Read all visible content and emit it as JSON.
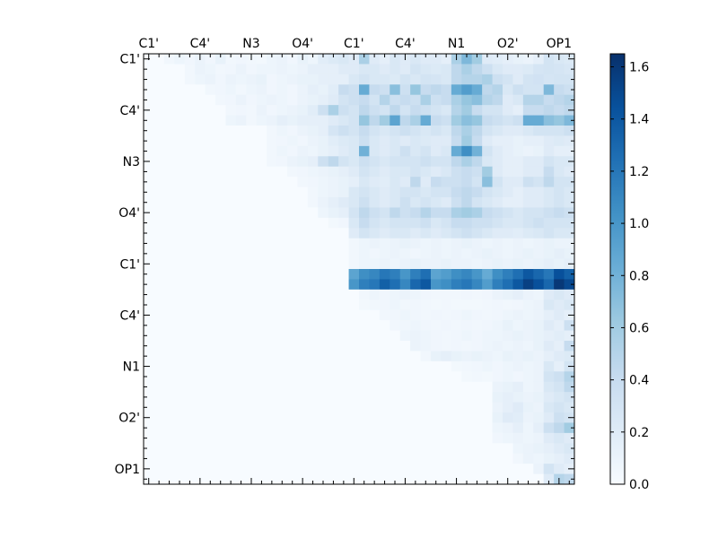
{
  "chart_data": {
    "type": "heatmap",
    "title": "",
    "xlabel": "",
    "ylabel": "",
    "n": 42,
    "tick_labels": [
      "C1'",
      "C4'",
      "N3",
      "O4'",
      "C1'",
      "C4'",
      "N1",
      "O2'",
      "OP1"
    ],
    "tick_positions": [
      0.5,
      5.5,
      10.5,
      15.5,
      20.5,
      25.5,
      30.5,
      35.5,
      40.5
    ],
    "x_ticks_position": "top",
    "colormap": "Blues",
    "colormap_stops": [
      "#f7fbff",
      "#deebf7",
      "#c6dbef",
      "#9ecae1",
      "#6baed6",
      "#4292c6",
      "#2171b5",
      "#08519c",
      "#08306b"
    ],
    "vmin": 0.0,
    "vmax": 1.65,
    "colorbar": {
      "ticks": [
        0.0,
        0.2,
        0.4,
        0.6,
        0.8,
        1.0,
        1.2,
        1.4,
        1.6
      ],
      "tick_labels": [
        "0.0",
        "0.2",
        "0.4",
        "0.6",
        "0.8",
        "1.0",
        "1.2",
        "1.4",
        "1.6"
      ]
    },
    "grid": false,
    "cells": {
      "0": {
        "2": 0.05,
        "3": 0.08,
        "4": 0.06,
        "5": 0.1,
        "6": 0.06,
        "7": 0.12,
        "8": 0.05,
        "9": 0.06,
        "10": 0.05,
        "11": 0.04,
        "12": 0.08,
        "13": 0.1,
        "14": 0.06,
        "15": 0.12,
        "16": 0.08,
        "17": 0.18,
        "18": 0.22,
        "19": 0.25,
        "20": 0.2,
        "21": 0.55,
        "22": 0.2,
        "23": 0.15,
        "24": 0.25,
        "25": 0.2,
        "26": 0.25,
        "27": 0.2,
        "28": 0.2,
        "29": 0.15,
        "30": 0.55,
        "31": 0.75,
        "32": 0.6,
        "33": 0.2,
        "34": 0.18,
        "35": 0.15,
        "36": 0.12,
        "37": 0.1,
        "38": 0.15,
        "39": 0.3,
        "40": 0.25,
        "41": 0.22
      },
      "1": {
        "4": 0.05,
        "5": 0.1,
        "6": 0.08,
        "7": 0.05,
        "8": 0.06,
        "9": 0.1,
        "10": 0.06,
        "11": 0.08,
        "12": 0.08,
        "13": 0.1,
        "14": 0.08,
        "15": 0.1,
        "16": 0.15,
        "17": 0.15,
        "18": 0.15,
        "19": 0.2,
        "20": 0.2,
        "21": 0.25,
        "22": 0.25,
        "23": 0.2,
        "24": 0.25,
        "25": 0.2,
        "26": 0.3,
        "27": 0.25,
        "28": 0.22,
        "29": 0.25,
        "30": 0.45,
        "31": 0.55,
        "32": 0.45,
        "33": 0.35,
        "34": 0.25,
        "35": 0.2,
        "36": 0.2,
        "37": 0.22,
        "38": 0.28,
        "39": 0.3,
        "40": 0.28,
        "41": 0.26
      },
      "2": {
        "4": 0.05,
        "5": 0.08,
        "6": 0.1,
        "7": 0.06,
        "8": 0.1,
        "9": 0.08,
        "10": 0.1,
        "11": 0.12,
        "12": 0.06,
        "13": 0.08,
        "14": 0.1,
        "15": 0.12,
        "16": 0.12,
        "17": 0.15,
        "18": 0.15,
        "19": 0.15,
        "20": 0.25,
        "21": 0.3,
        "22": 0.25,
        "23": 0.25,
        "24": 0.22,
        "25": 0.3,
        "26": 0.25,
        "27": 0.3,
        "28": 0.28,
        "29": 0.25,
        "30": 0.45,
        "31": 0.5,
        "32": 0.5,
        "33": 0.55,
        "34": 0.35,
        "35": 0.3,
        "36": 0.2,
        "37": 0.3,
        "38": 0.32,
        "39": 0.28,
        "40": 0.3,
        "41": 0.3
      },
      "3": {
        "6": 0.05,
        "7": 0.06,
        "8": 0.08,
        "9": 0.05,
        "10": 0.08,
        "11": 0.1,
        "12": 0.06,
        "13": 0.08,
        "14": 0.06,
        "15": 0.1,
        "16": 0.15,
        "17": 0.12,
        "18": 0.18,
        "19": 0.4,
        "20": 0.35,
        "21": 0.85,
        "22": 0.4,
        "23": 0.35,
        "24": 0.7,
        "25": 0.35,
        "26": 0.65,
        "27": 0.4,
        "28": 0.45,
        "29": 0.4,
        "30": 0.85,
        "31": 0.95,
        "32": 0.85,
        "33": 0.45,
        "34": 0.5,
        "35": 0.25,
        "36": 0.35,
        "37": 0.3,
        "38": 0.3,
        "39": 0.75,
        "40": 0.4,
        "41": 0.35
      },
      "4": {
        "7": 0.05,
        "8": 0.06,
        "9": 0.1,
        "10": 0.06,
        "11": 0.08,
        "12": 0.1,
        "13": 0.08,
        "14": 0.06,
        "15": 0.1,
        "16": 0.12,
        "17": 0.15,
        "18": 0.2,
        "19": 0.3,
        "20": 0.35,
        "21": 0.4,
        "22": 0.3,
        "23": 0.5,
        "24": 0.35,
        "25": 0.4,
        "26": 0.35,
        "27": 0.55,
        "28": 0.35,
        "29": 0.4,
        "30": 0.55,
        "31": 0.65,
        "32": 0.7,
        "33": 0.5,
        "34": 0.45,
        "35": 0.2,
        "36": 0.25,
        "37": 0.5,
        "38": 0.5,
        "39": 0.4,
        "40": 0.45,
        "41": 0.5
      },
      "5": {
        "8": 0.05,
        "9": 0.06,
        "10": 0.05,
        "11": 0.1,
        "12": 0.06,
        "13": 0.08,
        "14": 0.1,
        "15": 0.12,
        "16": 0.18,
        "17": 0.35,
        "18": 0.55,
        "19": 0.35,
        "20": 0.3,
        "21": 0.45,
        "22": 0.35,
        "23": 0.3,
        "24": 0.45,
        "25": 0.3,
        "26": 0.4,
        "27": 0.35,
        "28": 0.3,
        "29": 0.25,
        "30": 0.5,
        "31": 0.6,
        "32": 0.4,
        "33": 0.3,
        "34": 0.3,
        "35": 0.2,
        "36": 0.15,
        "37": 0.4,
        "38": 0.4,
        "39": 0.45,
        "40": 0.4,
        "41": 0.45
      },
      "6": {
        "8": 0.08,
        "9": 0.1,
        "10": 0.05,
        "11": 0.08,
        "12": 0.1,
        "13": 0.15,
        "14": 0.12,
        "15": 0.15,
        "16": 0.15,
        "17": 0.15,
        "18": 0.2,
        "19": 0.25,
        "20": 0.3,
        "21": 0.65,
        "22": 0.45,
        "23": 0.6,
        "24": 0.9,
        "25": 0.45,
        "26": 0.55,
        "27": 0.85,
        "28": 0.4,
        "29": 0.35,
        "30": 0.6,
        "31": 0.7,
        "32": 0.65,
        "33": 0.4,
        "34": 0.35,
        "35": 0.3,
        "36": 0.35,
        "37": 0.85,
        "38": 0.85,
        "39": 0.7,
        "40": 0.65,
        "41": 0.75
      },
      "7": {
        "12": 0.05,
        "13": 0.08,
        "14": 0.06,
        "15": 0.1,
        "16": 0.12,
        "17": 0.15,
        "18": 0.28,
        "19": 0.35,
        "20": 0.3,
        "21": 0.4,
        "22": 0.3,
        "23": 0.25,
        "24": 0.3,
        "25": 0.35,
        "26": 0.3,
        "27": 0.25,
        "28": 0.3,
        "29": 0.25,
        "30": 0.45,
        "31": 0.55,
        "32": 0.45,
        "33": 0.3,
        "34": 0.25,
        "35": 0.2,
        "36": 0.2,
        "37": 0.25,
        "38": 0.3,
        "39": 0.3,
        "40": 0.3,
        "41": 0.35
      },
      "8": {
        "12": 0.05,
        "13": 0.06,
        "14": 0.08,
        "15": 0.06,
        "16": 0.1,
        "17": 0.12,
        "18": 0.18,
        "19": 0.22,
        "20": 0.25,
        "21": 0.35,
        "22": 0.25,
        "23": 0.2,
        "24": 0.25,
        "25": 0.2,
        "26": 0.25,
        "27": 0.22,
        "28": 0.2,
        "29": 0.2,
        "30": 0.4,
        "31": 0.6,
        "32": 0.4,
        "33": 0.2,
        "34": 0.15,
        "35": 0.15,
        "36": 0.12,
        "37": 0.15,
        "38": 0.15,
        "39": 0.2,
        "40": 0.22,
        "41": 0.2
      },
      "9": {
        "12": 0.05,
        "13": 0.08,
        "14": 0.06,
        "15": 0.1,
        "16": 0.08,
        "17": 0.12,
        "18": 0.15,
        "19": 0.2,
        "20": 0.25,
        "21": 0.8,
        "22": 0.25,
        "23": 0.2,
        "24": 0.25,
        "25": 0.35,
        "26": 0.25,
        "27": 0.3,
        "28": 0.2,
        "29": 0.25,
        "30": 0.85,
        "31": 1.05,
        "32": 0.8,
        "33": 0.3,
        "34": 0.2,
        "35": 0.15,
        "36": 0.12,
        "37": 0.1,
        "38": 0.12,
        "39": 0.2,
        "40": 0.15,
        "41": 0.15
      },
      "10": {
        "12": 0.05,
        "13": 0.06,
        "14": 0.1,
        "15": 0.12,
        "16": 0.15,
        "17": 0.35,
        "18": 0.45,
        "19": 0.3,
        "20": 0.25,
        "21": 0.35,
        "22": 0.3,
        "23": 0.25,
        "24": 0.3,
        "25": 0.3,
        "26": 0.3,
        "27": 0.35,
        "28": 0.3,
        "29": 0.3,
        "30": 0.45,
        "31": 0.55,
        "32": 0.45,
        "33": 0.25,
        "34": 0.2,
        "35": 0.15,
        "36": 0.15,
        "37": 0.2,
        "38": 0.2,
        "39": 0.3,
        "40": 0.25,
        "41": 0.25
      },
      "11": {
        "14": 0.05,
        "15": 0.06,
        "16": 0.08,
        "17": 0.1,
        "18": 0.12,
        "19": 0.15,
        "20": 0.2,
        "21": 0.3,
        "22": 0.25,
        "23": 0.2,
        "24": 0.25,
        "25": 0.25,
        "26": 0.3,
        "27": 0.25,
        "28": 0.2,
        "29": 0.25,
        "30": 0.35,
        "31": 0.4,
        "32": 0.35,
        "33": 0.6,
        "34": 0.2,
        "35": 0.15,
        "36": 0.15,
        "37": 0.2,
        "38": 0.2,
        "39": 0.4,
        "40": 0.25,
        "41": 0.2
      },
      "12": {
        "15": 0.05,
        "16": 0.06,
        "17": 0.08,
        "18": 0.1,
        "19": 0.12,
        "20": 0.15,
        "21": 0.25,
        "22": 0.2,
        "23": 0.18,
        "24": 0.25,
        "25": 0.2,
        "26": 0.45,
        "27": 0.2,
        "28": 0.4,
        "29": 0.35,
        "30": 0.35,
        "31": 0.4,
        "32": 0.3,
        "33": 0.7,
        "34": 0.3,
        "35": 0.2,
        "36": 0.2,
        "37": 0.35,
        "38": 0.3,
        "39": 0.45,
        "40": 0.3,
        "41": 0.3
      },
      "13": {
        "16": 0.05,
        "17": 0.08,
        "18": 0.1,
        "19": 0.12,
        "20": 0.25,
        "21": 0.3,
        "22": 0.25,
        "23": 0.2,
        "24": 0.25,
        "25": 0.3,
        "26": 0.3,
        "27": 0.25,
        "28": 0.3,
        "29": 0.3,
        "30": 0.4,
        "31": 0.45,
        "32": 0.4,
        "33": 0.3,
        "34": 0.25,
        "35": 0.2,
        "36": 0.15,
        "37": 0.2,
        "38": 0.2,
        "39": 0.25,
        "40": 0.3,
        "41": 0.25
      },
      "14": {
        "16": 0.05,
        "17": 0.1,
        "18": 0.15,
        "19": 0.2,
        "20": 0.25,
        "21": 0.35,
        "22": 0.25,
        "23": 0.2,
        "24": 0.25,
        "25": 0.35,
        "26": 0.25,
        "27": 0.3,
        "28": 0.25,
        "29": 0.2,
        "30": 0.35,
        "31": 0.45,
        "32": 0.3,
        "33": 0.25,
        "34": 0.2,
        "35": 0.15,
        "36": 0.15,
        "37": 0.2,
        "38": 0.2,
        "39": 0.25,
        "40": 0.3,
        "41": 0.25
      },
      "15": {
        "17": 0.08,
        "18": 0.12,
        "19": 0.15,
        "20": 0.3,
        "21": 0.45,
        "22": 0.35,
        "23": 0.3,
        "24": 0.45,
        "25": 0.35,
        "26": 0.4,
        "27": 0.5,
        "28": 0.4,
        "29": 0.4,
        "30": 0.55,
        "31": 0.6,
        "32": 0.55,
        "33": 0.4,
        "34": 0.35,
        "35": 0.3,
        "36": 0.25,
        "37": 0.3,
        "38": 0.3,
        "39": 0.35,
        "40": 0.4,
        "41": 0.35
      },
      "16": {
        "18": 0.04,
        "19": 0.06,
        "20": 0.25,
        "21": 0.4,
        "22": 0.3,
        "23": 0.25,
        "24": 0.3,
        "25": 0.3,
        "26": 0.3,
        "27": 0.35,
        "28": 0.25,
        "29": 0.3,
        "30": 0.4,
        "31": 0.4,
        "32": 0.35,
        "33": 0.35,
        "34": 0.3,
        "35": 0.25,
        "36": 0.25,
        "37": 0.3,
        "38": 0.35,
        "39": 0.3,
        "40": 0.3,
        "41": 0.3
      },
      "17": {
        "20": 0.2,
        "21": 0.3,
        "22": 0.25,
        "23": 0.2,
        "24": 0.25,
        "25": 0.25,
        "26": 0.2,
        "27": 0.25,
        "28": 0.2,
        "29": 0.25,
        "30": 0.3,
        "31": 0.35,
        "32": 0.3,
        "33": 0.25,
        "34": 0.2,
        "35": 0.2,
        "36": 0.18,
        "37": 0.22,
        "38": 0.25,
        "39": 0.3,
        "40": 0.25,
        "41": 0.25
      },
      "18": {
        "20": 0.05,
        "21": 0.08,
        "22": 0.1,
        "23": 0.08,
        "24": 0.1,
        "25": 0.12,
        "26": 0.1,
        "27": 0.08,
        "28": 0.1,
        "29": 0.08,
        "30": 0.1,
        "31": 0.12,
        "32": 0.1,
        "33": 0.08,
        "34": 0.1,
        "35": 0.08,
        "36": 0.1,
        "37": 0.08,
        "38": 0.1,
        "39": 0.12,
        "40": 0.1,
        "41": 0.1
      },
      "19": {
        "20": 0.05,
        "21": 0.08,
        "22": 0.06,
        "23": 0.08,
        "24": 0.1,
        "25": 0.08,
        "26": 0.06,
        "27": 0.08,
        "28": 0.1,
        "29": 0.08,
        "30": 0.1,
        "31": 0.08,
        "32": 0.1,
        "33": 0.12,
        "34": 0.1,
        "35": 0.08,
        "36": 0.1,
        "37": 0.12,
        "38": 0.1,
        "39": 0.12,
        "40": 0.15,
        "41": 0.12
      },
      "20": {
        "20": 0.05,
        "21": 0.08,
        "22": 0.08,
        "23": 0.1,
        "24": 0.08,
        "25": 0.1,
        "26": 0.12,
        "27": 0.1,
        "28": 0.1,
        "29": 0.12,
        "30": 0.1,
        "31": 0.1,
        "32": 0.08,
        "33": 0.1,
        "34": 0.12,
        "35": 0.1,
        "36": 0.12,
        "37": 0.1,
        "38": 0.12,
        "39": 0.15,
        "40": 0.12,
        "41": 0.15
      },
      "21": {
        "20": 0.9,
        "21": 1.05,
        "22": 1.1,
        "23": 1.2,
        "24": 1.15,
        "25": 1.0,
        "26": 1.15,
        "27": 1.25,
        "28": 0.9,
        "29": 0.95,
        "30": 1.05,
        "31": 1.1,
        "32": 1.0,
        "33": 0.85,
        "34": 1.05,
        "35": 1.15,
        "36": 1.25,
        "37": 1.4,
        "38": 1.3,
        "39": 1.2,
        "40": 1.45,
        "41": 1.35
      },
      "22": {
        "20": 1.0,
        "21": 1.15,
        "22": 1.2,
        "23": 1.35,
        "24": 1.25,
        "25": 1.1,
        "26": 1.3,
        "27": 1.4,
        "28": 1.0,
        "29": 1.05,
        "30": 1.15,
        "31": 1.2,
        "32": 1.1,
        "33": 0.95,
        "34": 1.15,
        "35": 1.25,
        "36": 1.4,
        "37": 1.55,
        "38": 1.45,
        "39": 1.3,
        "40": 1.6,
        "41": 1.5
      },
      "23": {
        "21": 0.05,
        "22": 0.08,
        "23": 0.06,
        "24": 0.08,
        "25": 0.1,
        "26": 0.08,
        "27": 0.06,
        "28": 0.05,
        "29": 0.05,
        "30": 0.05,
        "31": 0.06,
        "32": 0.05,
        "33": 0.06,
        "34": 0.1,
        "35": 0.12,
        "36": 0.15,
        "37": 0.1,
        "38": 0.08,
        "39": 0.2,
        "40": 0.25,
        "41": 0.2
      },
      "24": {
        "21": 0.04,
        "22": 0.05,
        "23": 0.06,
        "24": 0.08,
        "25": 0.05,
        "26": 0.06,
        "27": 0.05,
        "28": 0.04,
        "29": 0.05,
        "30": 0.04,
        "31": 0.04,
        "32": 0.04,
        "33": 0.05,
        "34": 0.06,
        "35": 0.05,
        "36": 0.06,
        "37": 0.08,
        "38": 0.1,
        "39": 0.25,
        "40": 0.2,
        "41": 0.25
      },
      "25": {
        "23": 0.05,
        "24": 0.06,
        "25": 0.08,
        "26": 0.06,
        "27": 0.05,
        "28": 0.06,
        "29": 0.05,
        "30": 0.06,
        "31": 0.08,
        "32": 0.06,
        "33": 0.05,
        "34": 0.06,
        "35": 0.08,
        "36": 0.1,
        "37": 0.08,
        "38": 0.1,
        "39": 0.15,
        "40": 0.2,
        "41": 0.15
      },
      "26": {
        "24": 0.05,
        "25": 0.06,
        "26": 0.08,
        "27": 0.06,
        "28": 0.05,
        "29": 0.06,
        "30": 0.05,
        "31": 0.06,
        "32": 0.05,
        "33": 0.06,
        "34": 0.08,
        "35": 0.12,
        "36": 0.08,
        "37": 0.1,
        "38": 0.12,
        "39": 0.2,
        "40": 0.15,
        "41": 0.35
      },
      "27": {
        "25": 0.08,
        "26": 0.1,
        "27": 0.08,
        "28": 0.06,
        "29": 0.05,
        "30": 0.06,
        "31": 0.08,
        "32": 0.06,
        "33": 0.08,
        "34": 0.08,
        "35": 0.1,
        "36": 0.12,
        "37": 0.1,
        "38": 0.12,
        "39": 0.15,
        "40": 0.18,
        "41": 0.15
      },
      "28": {
        "26": 0.1,
        "27": 0.08,
        "28": 0.06,
        "29": 0.05,
        "30": 0.06,
        "31": 0.05,
        "32": 0.06,
        "33": 0.08,
        "34": 0.1,
        "35": 0.08,
        "36": 0.1,
        "37": 0.08,
        "38": 0.12,
        "39": 0.2,
        "40": 0.15,
        "41": 0.4
      },
      "29": {
        "27": 0.05,
        "28": 0.12,
        "29": 0.15,
        "30": 0.12,
        "31": 0.1,
        "32": 0.12,
        "33": 0.1,
        "34": 0.08,
        "35": 0.12,
        "36": 0.1,
        "37": 0.12,
        "38": 0.1,
        "39": 0.15,
        "40": 0.2,
        "41": 0.22
      },
      "30": {
        "30": 0.04,
        "31": 0.05,
        "32": 0.06,
        "33": 0.08,
        "34": 0.06,
        "35": 0.08,
        "36": 0.1,
        "37": 0.08,
        "38": 0.1,
        "39": 0.25,
        "40": 0.15,
        "41": 0.3
      },
      "31": {
        "31": 0.04,
        "32": 0.05,
        "33": 0.04,
        "34": 0.06,
        "35": 0.08,
        "36": 0.06,
        "37": 0.08,
        "38": 0.1,
        "39": 0.3,
        "40": 0.35,
        "41": 0.5
      },
      "32": {
        "34": 0.1,
        "35": 0.12,
        "36": 0.15,
        "37": 0.08,
        "38": 0.1,
        "39": 0.25,
        "40": 0.3,
        "41": 0.45
      },
      "33": {
        "34": 0.12,
        "35": 0.15,
        "36": 0.12,
        "37": 0.1,
        "38": 0.12,
        "39": 0.2,
        "40": 0.25,
        "41": 0.3
      },
      "34": {
        "34": 0.1,
        "35": 0.15,
        "36": 0.2,
        "37": 0.12,
        "38": 0.1,
        "39": 0.25,
        "40": 0.3,
        "41": 0.25
      },
      "35": {
        "34": 0.12,
        "35": 0.2,
        "36": 0.18,
        "37": 0.1,
        "38": 0.12,
        "39": 0.2,
        "40": 0.35,
        "41": 0.3
      },
      "36": {
        "34": 0.08,
        "35": 0.1,
        "36": 0.15,
        "37": 0.08,
        "38": 0.15,
        "39": 0.35,
        "40": 0.45,
        "41": 0.6
      },
      "37": {
        "34": 0.06,
        "35": 0.08,
        "36": 0.1,
        "37": 0.08,
        "38": 0.1,
        "39": 0.2,
        "40": 0.25,
        "41": 0.2
      },
      "38": {
        "36": 0.08,
        "37": 0.1,
        "38": 0.12,
        "39": 0.15,
        "40": 0.2,
        "41": 0.25
      },
      "39": {
        "36": 0.05,
        "37": 0.1,
        "38": 0.08,
        "39": 0.12,
        "40": 0.15,
        "41": 0.2
      },
      "40": {
        "38": 0.1,
        "39": 0.3,
        "40": 0.2,
        "41": 0.15
      },
      "41": {
        "39": 0.2,
        "40": 0.5,
        "41": 0.45
      }
    }
  }
}
